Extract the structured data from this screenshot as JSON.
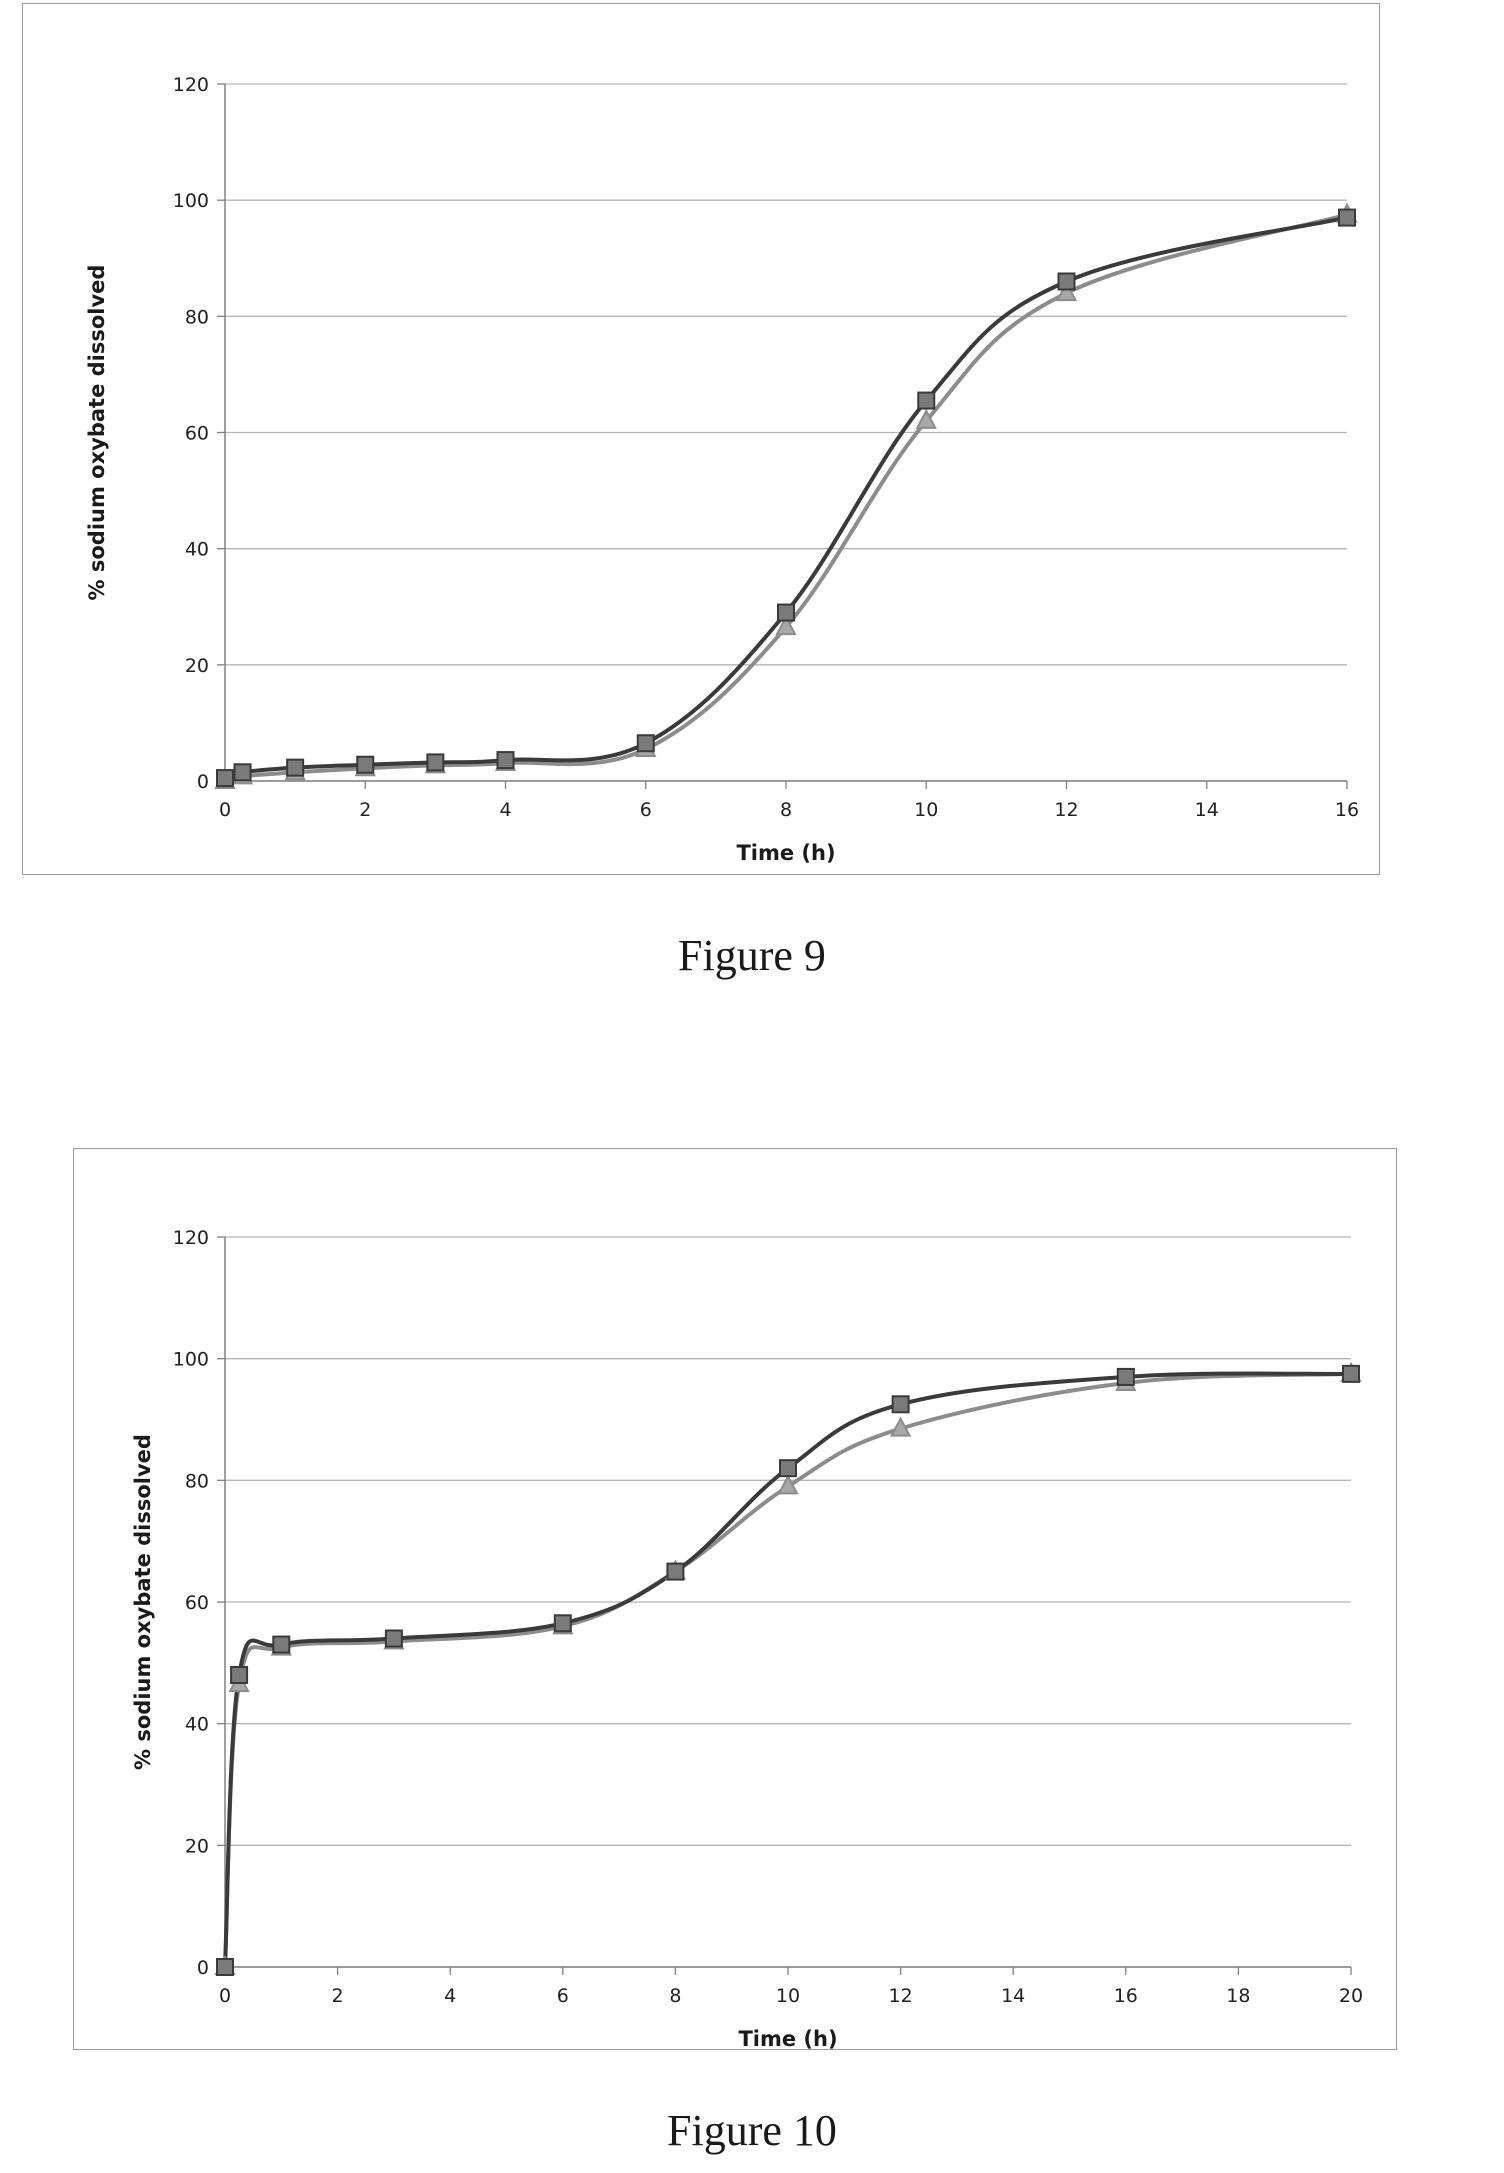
{
  "figures": [
    {
      "caption": "Figure 9",
      "chart_data": {
        "type": "line",
        "title": "",
        "xlabel": "Time (h)",
        "ylabel": "% sodium oxybate dissolved",
        "xlim": [
          0,
          16
        ],
        "ylim": [
          0,
          120
        ],
        "xticks": [
          0,
          2,
          4,
          6,
          8,
          10,
          12,
          14,
          16
        ],
        "yticks": [
          0,
          20,
          40,
          60,
          80,
          100,
          120
        ],
        "grid": "horizontal",
        "legend": "none",
        "series": [
          {
            "color": "#3a3a3a",
            "marker": "square",
            "x": [
              0,
              0.25,
              1,
              2,
              3,
              4,
              6,
              8,
              10,
              12,
              16
            ],
            "y": [
              0.5,
              1.5,
              2.3,
              2.8,
              3.2,
              3.6,
              6.5,
              29,
              65.5,
              86,
              97
            ]
          },
          {
            "color": "#8c8c8c",
            "marker": "triangle",
            "x": [
              0,
              0.25,
              1,
              2,
              3,
              4,
              6,
              8,
              10,
              12,
              16
            ],
            "y": [
              0,
              0.8,
              1.5,
              2.2,
              2.7,
              3.1,
              5.5,
              26.5,
              62,
              84,
              97.5
            ]
          }
        ]
      }
    },
    {
      "caption": "Figure 10",
      "chart_data": {
        "type": "line",
        "title": "",
        "xlabel": "Time (h)",
        "ylabel": "% sodium oxybate dissolved",
        "xlim": [
          0,
          20
        ],
        "ylim": [
          0,
          120
        ],
        "xticks": [
          0,
          2,
          4,
          6,
          8,
          10,
          12,
          14,
          16,
          18,
          20
        ],
        "yticks": [
          0,
          20,
          40,
          60,
          80,
          100,
          120
        ],
        "grid": "horizontal",
        "legend": "none",
        "series": [
          {
            "color": "#3a3a3a",
            "marker": "square",
            "x": [
              0,
              0.25,
              1,
              3,
              6,
              8,
              10,
              12,
              16,
              20
            ],
            "y": [
              0,
              48,
              53,
              54,
              56.5,
              65,
              82,
              92.5,
              97,
              97.5
            ]
          },
          {
            "color": "#8c8c8c",
            "marker": "triangle",
            "x": [
              0,
              0.25,
              1,
              3,
              6,
              8,
              10,
              12,
              16,
              20
            ],
            "y": [
              0,
              46.5,
              52.5,
              53.5,
              56,
              65,
              79,
              88.5,
              96,
              97.5
            ]
          }
        ]
      }
    }
  ]
}
